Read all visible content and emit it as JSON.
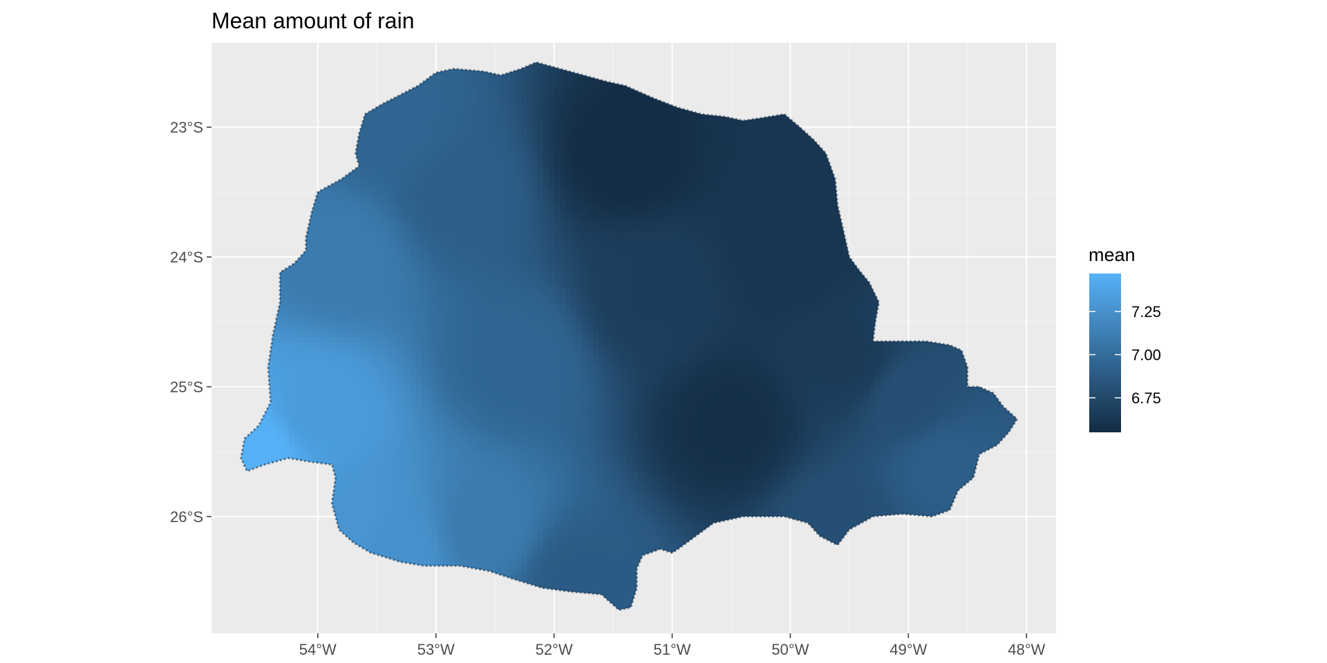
{
  "chart_data": {
    "type": "heatmap",
    "title": "Mean amount of rain",
    "xlabel": "",
    "ylabel": "",
    "x_ticks": [
      -54,
      -53,
      -52,
      -51,
      -50,
      -49,
      -48
    ],
    "x_tick_labels": [
      "54°W",
      "53°W",
      "52°W",
      "51°W",
      "50°W",
      "49°W",
      "48°W"
    ],
    "y_ticks": [
      -23,
      -24,
      -25,
      -26
    ],
    "y_tick_labels": [
      "23°S",
      "24°S",
      "25°S",
      "26°S"
    ],
    "xlim": [
      -54.9,
      -47.75
    ],
    "ylim": [
      -26.9,
      -22.35
    ],
    "grid": true,
    "legend": {
      "title": "mean",
      "placement": "right",
      "min": 6.55,
      "max": 7.47,
      "breaks": [
        7.25,
        7.0,
        6.75
      ],
      "break_labels": [
        "7.25",
        "7.00",
        "6.75"
      ],
      "low_color": "#132b43",
      "high_color": "#56b1f7"
    },
    "region_outline": [
      [
        -54.62,
        -25.4
      ],
      [
        -54.5,
        -25.3
      ],
      [
        -54.4,
        -25.12
      ],
      [
        -54.42,
        -24.85
      ],
      [
        -54.38,
        -24.6
      ],
      [
        -54.32,
        -24.35
      ],
      [
        -54.32,
        -24.12
      ],
      [
        -54.2,
        -24.05
      ],
      [
        -54.1,
        -23.95
      ],
      [
        -54.1,
        -23.85
      ],
      [
        -54.05,
        -23.65
      ],
      [
        -54.0,
        -23.5
      ],
      [
        -53.8,
        -23.4
      ],
      [
        -53.65,
        -23.3
      ],
      [
        -53.68,
        -23.2
      ],
      [
        -53.65,
        -23.05
      ],
      [
        -53.6,
        -22.9
      ],
      [
        -53.45,
        -22.82
      ],
      [
        -53.3,
        -22.75
      ],
      [
        -53.15,
        -22.68
      ],
      [
        -53.0,
        -22.58
      ],
      [
        -52.85,
        -22.55
      ],
      [
        -52.6,
        -22.57
      ],
      [
        -52.45,
        -22.6
      ],
      [
        -52.28,
        -22.55
      ],
      [
        -52.15,
        -22.5
      ],
      [
        -51.95,
        -22.55
      ],
      [
        -51.75,
        -22.6
      ],
      [
        -51.55,
        -22.65
      ],
      [
        -51.4,
        -22.68
      ],
      [
        -51.15,
        -22.78
      ],
      [
        -50.95,
        -22.85
      ],
      [
        -50.75,
        -22.9
      ],
      [
        -50.55,
        -22.92
      ],
      [
        -50.4,
        -22.95
      ],
      [
        -50.25,
        -22.93
      ],
      [
        -50.05,
        -22.9
      ],
      [
        -49.92,
        -23.0
      ],
      [
        -49.8,
        -23.1
      ],
      [
        -49.7,
        -23.2
      ],
      [
        -49.62,
        -23.4
      ],
      [
        -49.6,
        -23.6
      ],
      [
        -49.55,
        -23.8
      ],
      [
        -49.5,
        -24.0
      ],
      [
        -49.42,
        -24.1
      ],
      [
        -49.33,
        -24.2
      ],
      [
        -49.25,
        -24.35
      ],
      [
        -49.28,
        -24.5
      ],
      [
        -49.3,
        -24.65
      ],
      [
        -49.1,
        -24.65
      ],
      [
        -48.85,
        -24.65
      ],
      [
        -48.65,
        -24.68
      ],
      [
        -48.55,
        -24.72
      ],
      [
        -48.5,
        -24.85
      ],
      [
        -48.5,
        -25.0
      ],
      [
        -48.4,
        -25.0
      ],
      [
        -48.28,
        -25.05
      ],
      [
        -48.2,
        -25.15
      ],
      [
        -48.08,
        -25.25
      ],
      [
        -48.15,
        -25.35
      ],
      [
        -48.25,
        -25.45
      ],
      [
        -48.4,
        -25.52
      ],
      [
        -48.45,
        -25.7
      ],
      [
        -48.58,
        -25.8
      ],
      [
        -48.65,
        -25.95
      ],
      [
        -48.8,
        -26.0
      ],
      [
        -49.05,
        -25.98
      ],
      [
        -49.3,
        -26.0
      ],
      [
        -49.5,
        -26.1
      ],
      [
        -49.6,
        -26.22
      ],
      [
        -49.75,
        -26.15
      ],
      [
        -49.85,
        -26.05
      ],
      [
        -50.05,
        -26.0
      ],
      [
        -50.4,
        -26.0
      ],
      [
        -50.65,
        -26.05
      ],
      [
        -50.8,
        -26.15
      ],
      [
        -50.95,
        -26.25
      ],
      [
        -51.0,
        -26.28
      ],
      [
        -51.1,
        -26.25
      ],
      [
        -51.25,
        -26.3
      ],
      [
        -51.3,
        -26.4
      ],
      [
        -51.3,
        -26.55
      ],
      [
        -51.35,
        -26.7
      ],
      [
        -51.45,
        -26.72
      ],
      [
        -51.6,
        -26.6
      ],
      [
        -51.85,
        -26.58
      ],
      [
        -52.1,
        -26.55
      ],
      [
        -52.35,
        -26.48
      ],
      [
        -52.55,
        -26.42
      ],
      [
        -52.8,
        -26.38
      ],
      [
        -53.1,
        -26.38
      ],
      [
        -53.3,
        -26.35
      ],
      [
        -53.55,
        -26.28
      ],
      [
        -53.7,
        -26.2
      ],
      [
        -53.82,
        -26.1
      ],
      [
        -53.88,
        -25.9
      ],
      [
        -53.85,
        -25.7
      ],
      [
        -53.88,
        -25.6
      ],
      [
        -54.05,
        -25.58
      ],
      [
        -54.25,
        -25.55
      ],
      [
        -54.45,
        -25.6
      ],
      [
        -54.6,
        -25.65
      ],
      [
        -54.65,
        -25.55
      ]
    ],
    "surface_anchors": [
      {
        "lon": -54.5,
        "lat": -25.5,
        "mean": 7.47
      },
      {
        "lon": -54.0,
        "lat": -25.2,
        "mean": 7.32
      },
      {
        "lon": -53.7,
        "lat": -26.0,
        "mean": 7.28
      },
      {
        "lon": -53.3,
        "lat": -26.25,
        "mean": 7.25
      },
      {
        "lon": -52.6,
        "lat": -26.1,
        "mean": 7.1
      },
      {
        "lon": -53.8,
        "lat": -24.0,
        "mean": 7.1
      },
      {
        "lon": -53.4,
        "lat": -23.0,
        "mean": 6.95
      },
      {
        "lon": -52.8,
        "lat": -23.5,
        "mean": 6.9
      },
      {
        "lon": -52.3,
        "lat": -24.8,
        "mean": 6.95
      },
      {
        "lon": -51.8,
        "lat": -26.5,
        "mean": 6.88
      },
      {
        "lon": -51.4,
        "lat": -23.2,
        "mean": 6.56
      },
      {
        "lon": -51.2,
        "lat": -24.3,
        "mean": 6.68
      },
      {
        "lon": -50.5,
        "lat": -25.3,
        "mean": 6.58
      },
      {
        "lon": -50.0,
        "lat": -24.0,
        "mean": 6.62
      },
      {
        "lon": -49.9,
        "lat": -23.2,
        "mean": 6.62
      },
      {
        "lon": -49.5,
        "lat": -24.8,
        "mean": 6.66
      },
      {
        "lon": -49.0,
        "lat": -25.1,
        "mean": 6.8
      },
      {
        "lon": -48.7,
        "lat": -25.6,
        "mean": 6.9
      },
      {
        "lon": -49.6,
        "lat": -26.1,
        "mean": 6.8
      }
    ]
  }
}
